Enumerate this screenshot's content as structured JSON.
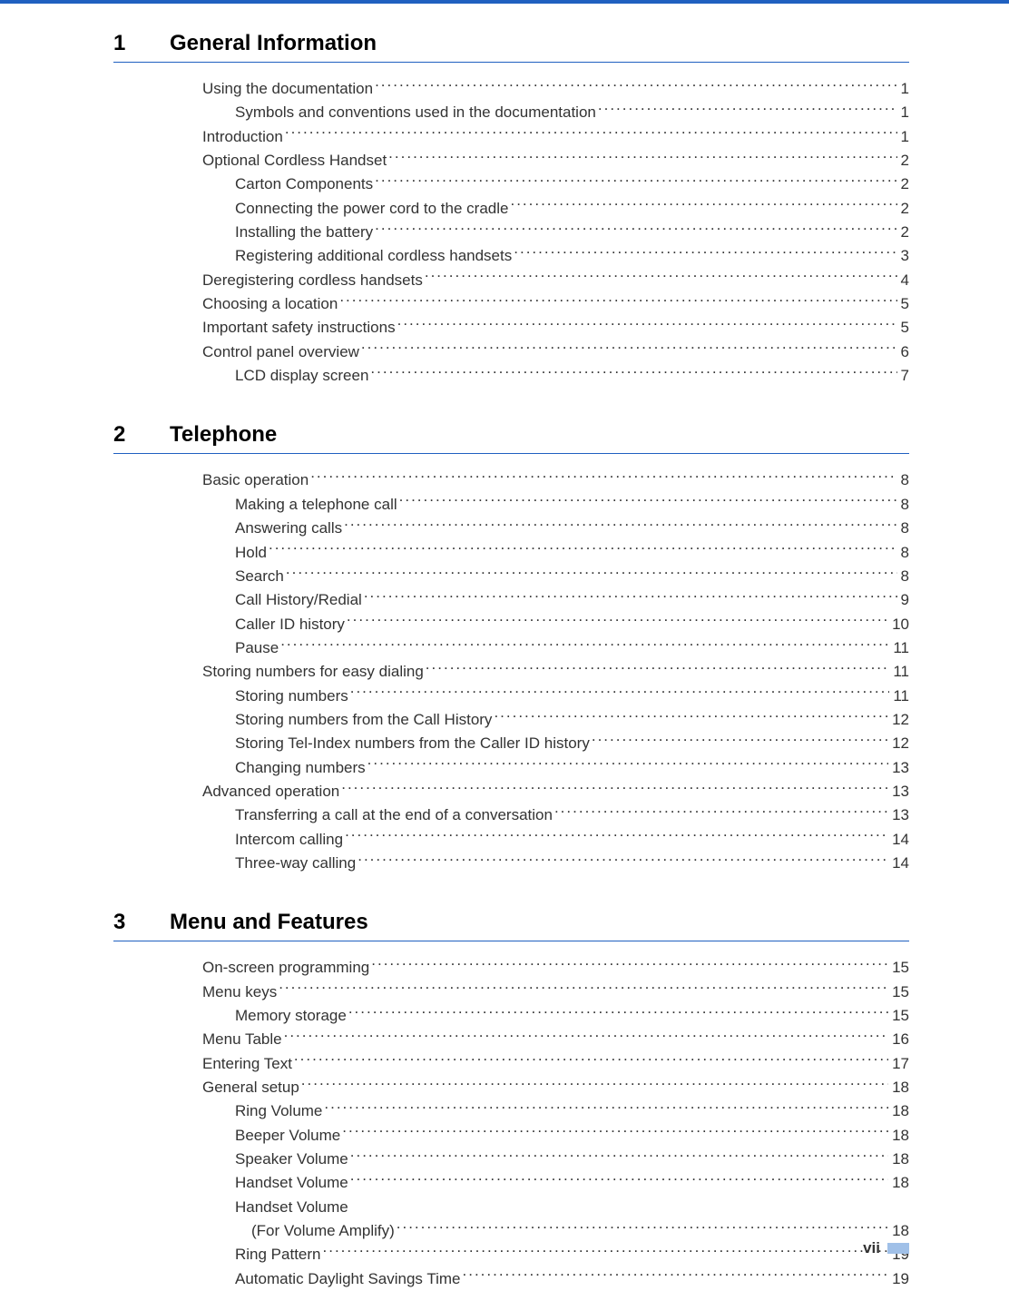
{
  "colors": {
    "accent": "#2060c0",
    "footer_accent": "#a0c0e8",
    "text": "#333333",
    "background": "#ffffff"
  },
  "typography": {
    "body_font_size": 17,
    "heading_font_size": 24,
    "font_family": "Arial"
  },
  "footer": {
    "page_number": "vii"
  },
  "sections": [
    {
      "number": "1",
      "title": "General Information",
      "entries": [
        {
          "level": 1,
          "label": "Using the documentation",
          "page": "1"
        },
        {
          "level": 2,
          "label": "Symbols and conventions used in the documentation",
          "page": "1"
        },
        {
          "level": 1,
          "label": "Introduction",
          "page": "1"
        },
        {
          "level": 1,
          "label": "Optional Cordless Handset",
          "page": "2"
        },
        {
          "level": 2,
          "label": "Carton Components",
          "page": "2"
        },
        {
          "level": 2,
          "label": "Connecting the power cord to the cradle",
          "page": "2"
        },
        {
          "level": 2,
          "label": "Installing the battery",
          "page": "2"
        },
        {
          "level": 2,
          "label": "Registering additional cordless handsets",
          "page": "3"
        },
        {
          "level": 1,
          "label": "Deregistering cordless handsets",
          "page": "4"
        },
        {
          "level": 1,
          "label": "Choosing a location",
          "page": "5"
        },
        {
          "level": 1,
          "label": "Important safety instructions",
          "page": "5"
        },
        {
          "level": 1,
          "label": "Control panel overview",
          "page": "6"
        },
        {
          "level": 2,
          "label": "LCD display screen",
          "page": "7"
        }
      ]
    },
    {
      "number": "2",
      "title": "Telephone",
      "entries": [
        {
          "level": 1,
          "label": "Basic operation",
          "page": "8"
        },
        {
          "level": 2,
          "label": "Making a telephone call",
          "page": "8"
        },
        {
          "level": 2,
          "label": "Answering calls",
          "page": "8"
        },
        {
          "level": 2,
          "label": "Hold",
          "page": "8"
        },
        {
          "level": 2,
          "label": "Search",
          "page": "8"
        },
        {
          "level": 2,
          "label": "Call History/Redial",
          "page": "9"
        },
        {
          "level": 2,
          "label": "Caller ID history",
          "page": "10"
        },
        {
          "level": 2,
          "label": "Pause",
          "page": "11"
        },
        {
          "level": 1,
          "label": "Storing numbers for easy dialing",
          "page": "11"
        },
        {
          "level": 2,
          "label": "Storing numbers",
          "page": "11"
        },
        {
          "level": 2,
          "label": "Storing numbers from the Call History",
          "page": "12"
        },
        {
          "level": 2,
          "label": "Storing Tel-Index numbers from the Caller ID history",
          "page": "12"
        },
        {
          "level": 2,
          "label": "Changing numbers",
          "page": "13"
        },
        {
          "level": 1,
          "label": "Advanced operation",
          "page": "13"
        },
        {
          "level": 2,
          "label": "Transferring a call at the end of a conversation",
          "page": "13"
        },
        {
          "level": 2,
          "label": "Intercom calling",
          "page": "14"
        },
        {
          "level": 2,
          "label": "Three-way calling",
          "page": "14"
        }
      ]
    },
    {
      "number": "3",
      "title": "Menu and Features",
      "entries": [
        {
          "level": 1,
          "label": "On-screen programming",
          "page": "15"
        },
        {
          "level": 1,
          "label": "Menu keys",
          "page": "15"
        },
        {
          "level": 2,
          "label": "Memory storage",
          "page": "15"
        },
        {
          "level": 1,
          "label": "Menu Table",
          "page": "16"
        },
        {
          "level": 1,
          "label": "Entering Text",
          "page": "17"
        },
        {
          "level": 1,
          "label": "General setup",
          "page": "18"
        },
        {
          "level": 2,
          "label": "Ring Volume",
          "page": "18"
        },
        {
          "level": 2,
          "label": "Beeper Volume",
          "page": "18"
        },
        {
          "level": 2,
          "label": "Speaker Volume",
          "page": "18"
        },
        {
          "level": 2,
          "label": "Handset Volume",
          "page": "18"
        },
        {
          "level": 2,
          "label_line1": "Handset Volume",
          "label_line2": "(For Volume Amplify)",
          "page": "18",
          "multiline": true
        },
        {
          "level": 2,
          "label": "Ring Pattern",
          "page": "19"
        },
        {
          "level": 2,
          "label": "Automatic Daylight Savings Time",
          "page": "19"
        }
      ]
    }
  ]
}
